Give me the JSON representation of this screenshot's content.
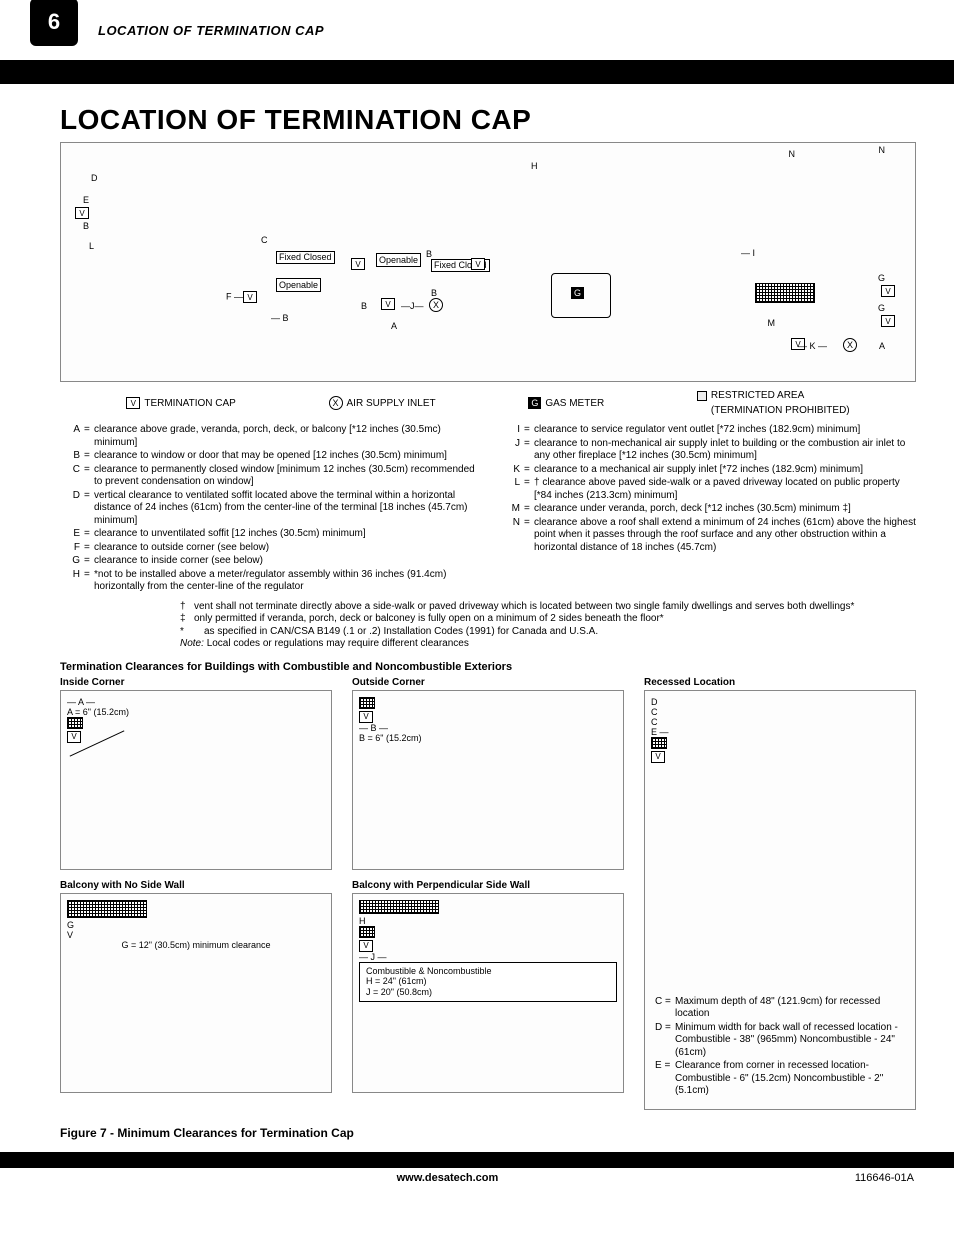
{
  "page_number": "6",
  "header_label": "LOCATION OF TERMINATION CAP",
  "title": "LOCATION OF TERMINATION CAP",
  "legend": {
    "termination_cap": "TERMINATION CAP",
    "air_supply": "AIR SUPPLY INLET",
    "gas_meter": "GAS METER",
    "restricted": "RESTRICTED AREA",
    "restricted_sub": "(TERMINATION PROHIBITED)",
    "v": "V",
    "x": "X",
    "g": "G"
  },
  "main_labels": {
    "fixed_closed_1": "Fixed Closed",
    "openable_1": "Openable",
    "openable_2": "Openable",
    "fixed_closed_2": "Fixed Closed",
    "letters": {
      "A": "A",
      "B": "B",
      "C": "C",
      "D": "D",
      "E": "E",
      "F": "F",
      "G": "G",
      "H": "H",
      "I": "I",
      "J": "J",
      "K": "K",
      "L": "L",
      "M": "M",
      "N": "N",
      "V": "V",
      "X": "X"
    }
  },
  "defs_left": [
    {
      "l": "A",
      "t": "clearance above grade, veranda, porch, deck, or balcony [*12 inches (30.5mc) minimum]"
    },
    {
      "l": "B",
      "t": "clearance to window or door that may be opened [12 inches (30.5cm) minimum]"
    },
    {
      "l": "C",
      "t": "clearance to permanently closed window [minimum 12 inches (30.5cm) recommended to prevent condensation on window]"
    },
    {
      "l": "D",
      "t": "vertical clearance to ventilated soffit located above the terminal within a horizontal distance of 24 inches (61cm) from the center-line of the terminal [18 inches (45.7cm) minimum]"
    },
    {
      "l": "E",
      "t": "clearance to unventilated soffit [12 inches (30.5cm) minimum]"
    },
    {
      "l": "F",
      "t": "clearance to outside corner (see below)"
    },
    {
      "l": "G",
      "t": "clearance to inside corner (see below)"
    },
    {
      "l": "H",
      "t": "*not to be installed above a meter/regulator assembly within 36 inches  (91.4cm) horizontally from the center-line of the regulator"
    }
  ],
  "defs_right": [
    {
      "l": "I",
      "t": "clearance to service regulator vent outlet [*72 inches (182.9cm) minimum]"
    },
    {
      "l": "J",
      "t": "clearance to non-mechanical air supply inlet to building or the combustion air inlet to any other fireplace [*12 inches (30.5cm) minimum]"
    },
    {
      "l": "K",
      "t": "clearance to a mechanical air supply inlet [*72 inches (182.9cm) minimum]"
    },
    {
      "l": "L",
      "t": "† clearance above paved side-walk or a paved driveway located on public property [*84 inches (213.3cm) minimum]"
    },
    {
      "l": "M",
      "t": "clearance under veranda, porch, deck [*12 inches (30.5cm) minimum ‡]"
    },
    {
      "l": "N",
      "t": "clearance above a roof shall extend a minimum of 24 inches (61cm) above the highest point when it passes through the roof surface and any other obstruction within a horizontal distance of 18 inches (45.7cm)"
    }
  ],
  "notes": {
    "dagger": "vent shall not terminate directly above a side-walk or paved driveway which is located between two single family dwellings and serves both dwellings*",
    "ddagger": "only permitted if veranda, porch, deck or balconey is fully open on a minimum of 2 sides beneath the floor*",
    "star": "as specified in CAN/CSA B149 (.1 or .2) Installation Codes (1991) for Canada and U.S.A.",
    "note": "Local codes or regulations may require different clearances",
    "note_label": "Note:"
  },
  "section_subtitle": "Termination Clearances for Buildings with Combustible and Noncombustible Exteriors",
  "panels": {
    "inside": {
      "title": "Inside Corner",
      "dim_label": "A",
      "dim_text": "A = 6\" (15.2cm)",
      "v": "V"
    },
    "outside": {
      "title": "Outside Corner",
      "dim_label": "B",
      "dim_text": "B = 6\" (15.2cm)",
      "v": "V"
    },
    "recessed": {
      "title": "Recessed Location",
      "v": "V",
      "c": "C",
      "d": "D",
      "e": "E"
    },
    "balcony_no": {
      "title": "Balcony with No Side Wall",
      "g": "G",
      "v": "V",
      "g_text": "G = 12\" (30.5cm) minimum clearance"
    },
    "balcony_perp": {
      "title": "Balcony with Perpendicular Side Wall",
      "h": "H",
      "j": "J",
      "v": "V",
      "box1": "Combustible & Noncombustible",
      "box2": "H = 24\" (61cm)",
      "box3": "J = 20\" (50.8cm)"
    }
  },
  "recessed_notes": [
    {
      "l": "C =",
      "t": "Maximum depth of 48\" (121.9cm) for recessed location"
    },
    {
      "l": "D =",
      "t": "Minimum width for back wall of recessed location - Combustible - 38\" (965mm) Noncombustible - 24\" (61cm)"
    },
    {
      "l": "E =",
      "t": "Clearance from corner in recessed location- Combustible - 6\" (15.2cm) Noncombustible - 2\" (5.1cm)"
    }
  ],
  "figure_caption": "Figure 7 - Minimum Clearances for Termination Cap",
  "footer": {
    "url": "www.desatech.com",
    "doc": "116646-01A"
  }
}
